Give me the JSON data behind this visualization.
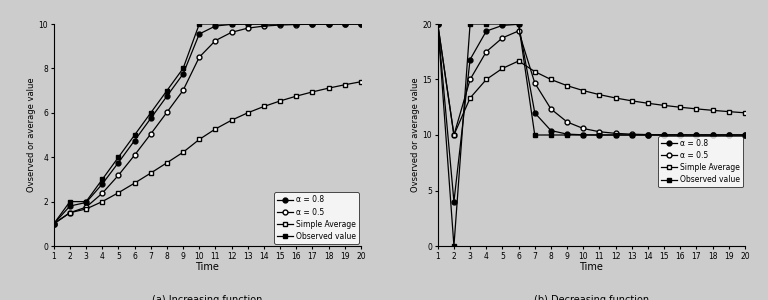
{
  "time": [
    1,
    2,
    3,
    4,
    5,
    6,
    7,
    8,
    9,
    10,
    11,
    12,
    13,
    14,
    15,
    16,
    17,
    18,
    19,
    20
  ],
  "observed_inc": [
    1,
    2,
    2,
    3,
    4,
    5,
    6,
    7,
    8,
    10,
    10,
    10,
    10,
    10,
    10,
    10,
    10,
    10,
    10,
    10
  ],
  "observed_dec": [
    20,
    0,
    20,
    20,
    20,
    20,
    10,
    10,
    10,
    10,
    10,
    10,
    10,
    10,
    10,
    10,
    10,
    10,
    10,
    10
  ],
  "bg_color": "#cccccc",
  "title_a": "(a) Increasing function",
  "title_b": "(b) Decreasing function",
  "ylabel": "Ovserved or average value",
  "xlabel": "Time",
  "legend_labels": [
    "α = 0.8",
    "α = 0.5",
    "Simple Average",
    "Observed value"
  ],
  "ylim_inc": [
    0,
    10
  ],
  "ylim_dec": [
    0,
    20
  ],
  "yticks_inc": [
    0,
    2,
    4,
    6,
    8,
    10
  ],
  "yticks_dec": [
    0,
    5,
    10,
    15,
    20
  ]
}
